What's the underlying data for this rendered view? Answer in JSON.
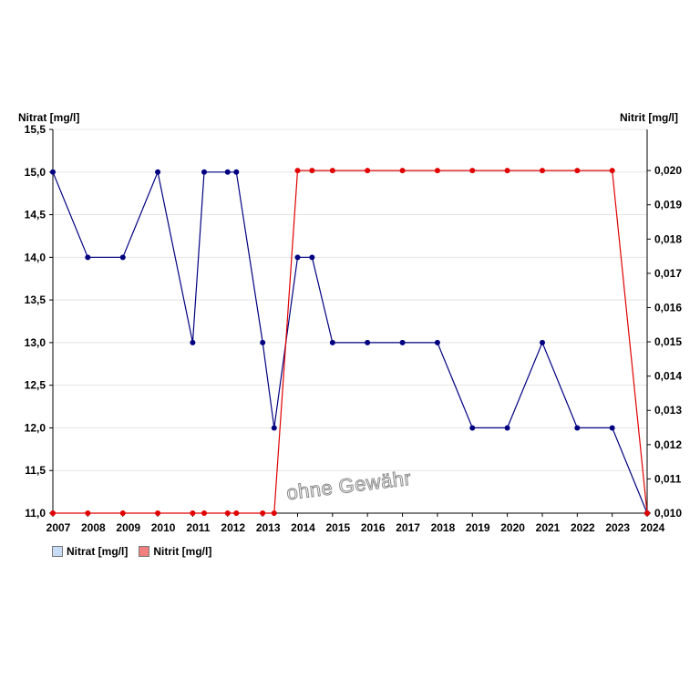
{
  "chart_data": {
    "type": "line",
    "left_axis_title": "Nitrat [mg/l]",
    "right_axis_title": "Nitrit [mg/l]",
    "left_ylim": [
      11.0,
      15.5
    ],
    "left_ticks": [
      "11,0",
      "11,5",
      "12,0",
      "12,5",
      "13,0",
      "13,5",
      "14,0",
      "14,5",
      "15,0",
      "15,5"
    ],
    "right_ylim": [
      0.01,
      0.0212
    ],
    "right_ticks": [
      "0,010",
      "0,011",
      "0,012",
      "0,013",
      "0,014",
      "0,015",
      "0,016",
      "0,017",
      "0,018",
      "0,019",
      "0,020"
    ],
    "xlim": [
      "2007-01-01",
      "2024-01-01"
    ],
    "x_ticks": [
      "2007",
      "2008",
      "2009",
      "2010",
      "2011",
      "2012",
      "2013",
      "2014",
      "2015",
      "2016",
      "2017",
      "2018",
      "2019",
      "2020",
      "2021",
      "2022",
      "2023",
      "2024"
    ],
    "grid": true,
    "legend_placement": "bottom-left",
    "watermark": "ohne Gewähr",
    "series": [
      {
        "name": "Nitrat [mg/l]",
        "axis": "left",
        "color": "#000080",
        "legend_color": "#c8dcf8",
        "points": [
          [
            "2007-01-01",
            15.0
          ],
          [
            "2008-01-01",
            14.0
          ],
          [
            "2009-01-01",
            14.0
          ],
          [
            "2010-01-01",
            15.0
          ],
          [
            "2011-01-01",
            13.0
          ],
          [
            "2011-05-01",
            15.0
          ],
          [
            "2012-01-01",
            15.0
          ],
          [
            "2012-04-01",
            15.0
          ],
          [
            "2013-01-01",
            13.0
          ],
          [
            "2013-05-01",
            12.0
          ],
          [
            "2014-01-01",
            14.0
          ],
          [
            "2014-06-01",
            14.0
          ],
          [
            "2015-01-01",
            13.0
          ],
          [
            "2016-01-01",
            13.0
          ],
          [
            "2017-01-01",
            13.0
          ],
          [
            "2018-01-01",
            13.0
          ],
          [
            "2019-01-01",
            12.0
          ],
          [
            "2020-01-01",
            12.0
          ],
          [
            "2021-01-01",
            13.0
          ],
          [
            "2022-01-01",
            12.0
          ],
          [
            "2023-01-01",
            12.0
          ],
          [
            "2024-01-01",
            11.0
          ]
        ]
      },
      {
        "name": "Nitrit [mg/l]",
        "axis": "right",
        "color": "#e00000",
        "legend_color": "#f08080",
        "points": [
          [
            "2007-01-01",
            0.01
          ],
          [
            "2008-01-01",
            0.01
          ],
          [
            "2009-01-01",
            0.01
          ],
          [
            "2010-01-01",
            0.01
          ],
          [
            "2011-01-01",
            0.01
          ],
          [
            "2011-05-01",
            0.01
          ],
          [
            "2012-01-01",
            0.01
          ],
          [
            "2012-04-01",
            0.01
          ],
          [
            "2013-01-01",
            0.01
          ],
          [
            "2013-05-01",
            0.01
          ],
          [
            "2014-01-01",
            0.02
          ],
          [
            "2014-06-01",
            0.02
          ],
          [
            "2015-01-01",
            0.02
          ],
          [
            "2016-01-01",
            0.02
          ],
          [
            "2017-01-01",
            0.02
          ],
          [
            "2018-01-01",
            0.02
          ],
          [
            "2019-01-01",
            0.02
          ],
          [
            "2020-01-01",
            0.02
          ],
          [
            "2021-01-01",
            0.02
          ],
          [
            "2022-01-01",
            0.02
          ],
          [
            "2023-01-01",
            0.02
          ],
          [
            "2024-01-01",
            0.01
          ]
        ]
      }
    ]
  }
}
